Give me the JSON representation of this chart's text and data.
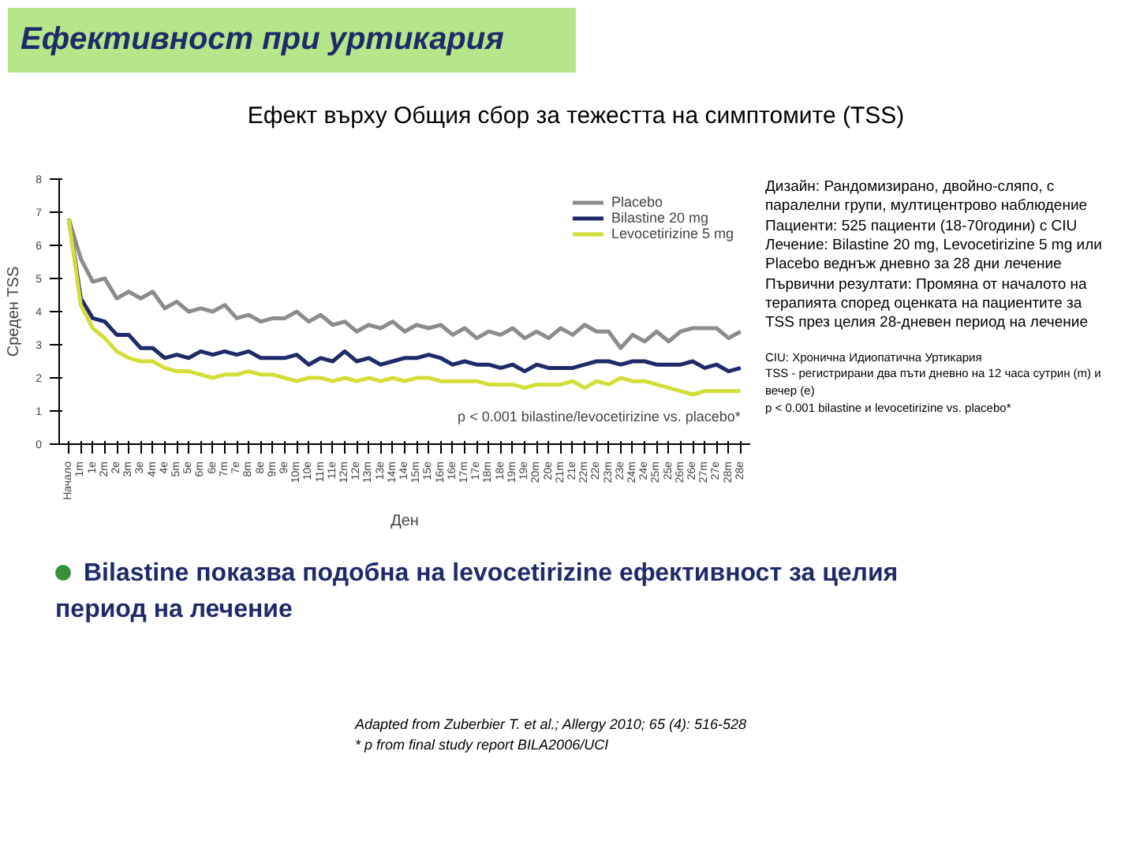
{
  "chart_data": {
    "type": "line",
    "title": "Ефект върху Общия сбор за тежестта на симптомите (TSS)",
    "xlabel": "Ден",
    "ylabel": "Среден TSS",
    "categories": [
      "Начало",
      "1m",
      "1e",
      "2m",
      "2e",
      "3m",
      "3e",
      "4m",
      "4e",
      "5m",
      "5e",
      "6m",
      "6e",
      "7m",
      "7e",
      "8m",
      "8e",
      "9m",
      "9e",
      "10m",
      "10e",
      "11m",
      "11e",
      "12m",
      "12e",
      "13m",
      "13e",
      "14m",
      "14e",
      "15m",
      "15e",
      "16m",
      "16e",
      "17m",
      "17e",
      "18m",
      "18e",
      "19m",
      "19e",
      "20m",
      "20e",
      "21m",
      "21e",
      "22m",
      "22e",
      "23m",
      "23e",
      "24m",
      "24e",
      "25m",
      "25e",
      "26m",
      "26e",
      "27m",
      "27e",
      "28m",
      "28e"
    ],
    "series": [
      {
        "name": "Placebo",
        "color": "#8c8c8c",
        "values": [
          6.8,
          5.6,
          4.9,
          5.0,
          4.4,
          4.6,
          4.4,
          4.6,
          4.1,
          4.3,
          4.0,
          4.1,
          4.0,
          4.2,
          3.8,
          3.9,
          3.7,
          3.8,
          3.8,
          4.0,
          3.7,
          3.9,
          3.6,
          3.7,
          3.4,
          3.6,
          3.5,
          3.7,
          3.4,
          3.6,
          3.5,
          3.6,
          3.3,
          3.5,
          3.2,
          3.4,
          3.3,
          3.5,
          3.2,
          3.4,
          3.2,
          3.5,
          3.3,
          3.6,
          3.4,
          3.4,
          2.9,
          3.3,
          3.1,
          3.4,
          3.1,
          3.4,
          3.5,
          3.5,
          3.5,
          3.2,
          3.4
        ]
      },
      {
        "name": "Bilastine 20 mg",
        "color": "#1f2a6b",
        "values": [
          6.8,
          4.4,
          3.8,
          3.7,
          3.3,
          3.3,
          2.9,
          2.9,
          2.6,
          2.7,
          2.6,
          2.8,
          2.7,
          2.8,
          2.7,
          2.8,
          2.6,
          2.6,
          2.6,
          2.7,
          2.4,
          2.6,
          2.5,
          2.8,
          2.5,
          2.6,
          2.4,
          2.5,
          2.6,
          2.6,
          2.7,
          2.6,
          2.4,
          2.5,
          2.4,
          2.4,
          2.3,
          2.4,
          2.2,
          2.4,
          2.3,
          2.3,
          2.3,
          2.4,
          2.5,
          2.5,
          2.4,
          2.5,
          2.5,
          2.4,
          2.4,
          2.4,
          2.5,
          2.3,
          2.4,
          2.2,
          2.3
        ]
      },
      {
        "name": "Levocetirizine 5 mg",
        "color": "#d4de3a",
        "values": [
          6.8,
          4.2,
          3.5,
          3.2,
          2.8,
          2.6,
          2.5,
          2.5,
          2.3,
          2.2,
          2.2,
          2.1,
          2.0,
          2.1,
          2.1,
          2.2,
          2.1,
          2.1,
          2.0,
          1.9,
          2.0,
          2.0,
          1.9,
          2.0,
          1.9,
          2.0,
          1.9,
          2.0,
          1.9,
          2.0,
          2.0,
          1.9,
          1.9,
          1.9,
          1.9,
          1.8,
          1.8,
          1.8,
          1.7,
          1.8,
          1.8,
          1.8,
          1.9,
          1.7,
          1.9,
          1.8,
          2.0,
          1.9,
          1.9,
          1.8,
          1.7,
          1.6,
          1.5,
          1.6,
          1.6,
          1.6,
          1.6
        ]
      }
    ],
    "ylim": [
      0,
      8
    ],
    "yticks": [
      0,
      1,
      2,
      3,
      4,
      5,
      6,
      7,
      8
    ],
    "grid": false,
    "legend": "top right",
    "line_style": "solid",
    "marker": "none",
    "annotations": [
      "Ефективност при уртикария",
      "p < 0.001 bilastine/levocetirizine vs. placebo*",
      "Дизайн: Рандомизирано, двойно-сляпо, с паралелни групи, мултицентрово наблюдение\nПациенти: 525 пациенти (18-70години) с CIU\nЛечение: Bilastine 20 mg, Levocetirizine 5 mg или Placebo веднъж дневно за 28 дни лечение\nПървични резултати: Промяна от началото на терапията според оценката на пациентите за TSS през целия 28-дневен период на лечение",
      "CIU: Хронична Идиопатична Уртикария\nTSS - регистрирани два пъти дневно на 12 часа сутрин (m) и вечер (e)\np < 0.001 bilastine и levocetirizine vs. placebo*",
      "Bilastine показва подобна на levocetirizine ефективност за целия период на лечение",
      "Adapted from Zuberbier T. et al.; Allergy 2010; 65 (4): 516-528\n* p from final study report BILA2006/UCI"
    ]
  }
}
